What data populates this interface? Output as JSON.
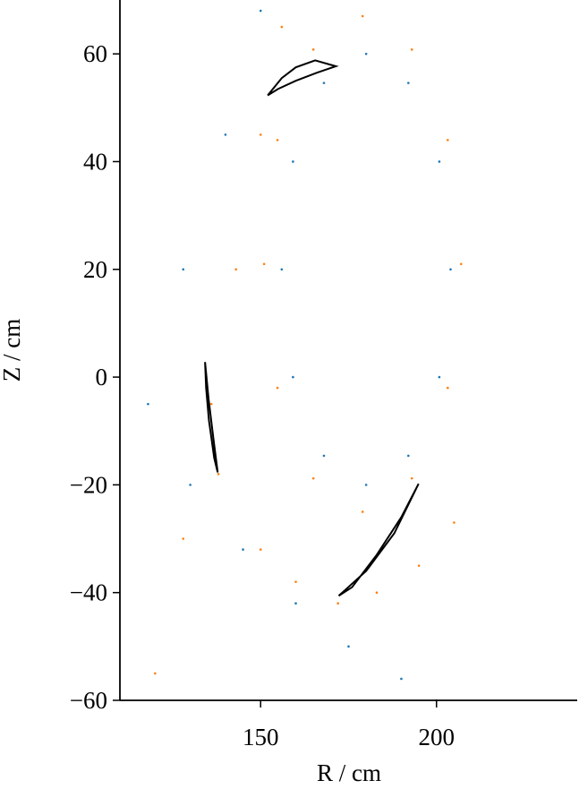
{
  "chart_data": {
    "type": "scatter",
    "xlabel": "R / cm",
    "ylabel": "Z / cm",
    "xlim": [
      110,
      240
    ],
    "ylim": [
      -60,
      70
    ],
    "xticks": [
      150,
      200
    ],
    "yticks": [
      {
        "value": -60,
        "label": "−60"
      },
      {
        "value": -40,
        "label": "−40"
      },
      {
        "value": -20,
        "label": "−20"
      },
      0,
      20,
      40,
      60
    ],
    "series": [
      {
        "color": "#ff7f0e",
        "mode": "markers",
        "x": [
          207,
          203.2,
          193,
          179,
          165,
          154.8,
          151,
          154.8,
          165,
          179,
          193,
          203.2,
          138,
          150,
          160,
          172,
          183,
          195,
          205,
          120,
          128,
          136,
          143,
          150,
          156
        ],
        "y": [
          21,
          44,
          60.8,
          67,
          60.8,
          44,
          21,
          -2,
          -18.8,
          -25,
          -18.8,
          -2,
          -18,
          -32,
          -38,
          -42,
          -40,
          -35,
          -27,
          -55,
          -30,
          -5,
          20,
          45,
          65
        ]
      },
      {
        "color": "#1f77b4",
        "mode": "markers",
        "x": [
          204,
          200.8,
          192,
          180,
          168,
          159.2,
          156,
          159.2,
          168,
          180,
          192,
          200.8,
          130,
          145,
          160,
          175,
          190,
          200,
          150,
          140,
          128,
          118
        ],
        "y": [
          20,
          40,
          54.6,
          60,
          54.6,
          40,
          20,
          0,
          -14.6,
          -20,
          -14.6,
          0,
          -20,
          -32,
          -42,
          -50,
          -56,
          -60,
          68,
          45,
          20,
          -5
        ]
      },
      {
        "color": "#000000",
        "mode": "line",
        "x": [
          152,
          156,
          160,
          165.5,
          171.4,
          166,
          160,
          155,
          152
        ],
        "y": [
          52.3,
          55.5,
          57.5,
          58.8,
          57.7,
          56.5,
          55,
          53.5,
          52.3
        ]
      },
      {
        "color": "#000000",
        "mode": "line",
        "x": [
          134.2,
          135.2,
          136.5,
          137.8,
          136.8,
          135.3,
          134.5,
          134.2
        ],
        "y": [
          2.8,
          -4,
          -11,
          -17.7,
          -15,
          -8,
          -2,
          2.8
        ]
      },
      {
        "color": "#000000",
        "mode": "line",
        "x": [
          172.2,
          180,
          188,
          194.9,
          190,
          183,
          176,
          172.2
        ],
        "y": [
          -40.6,
          -36,
          -29,
          -19.8,
          -26,
          -33,
          -39,
          -40.6
        ]
      }
    ]
  }
}
